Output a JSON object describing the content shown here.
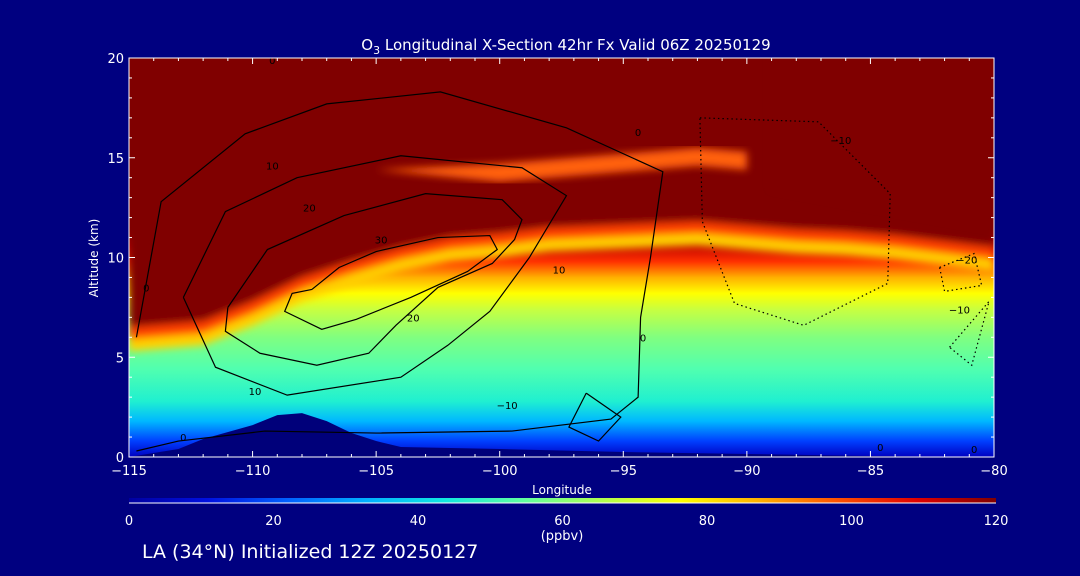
{
  "figure": {
    "title_prefix": "O",
    "title_subscript": "3",
    "title_rest": " Longitudinal X-Section 42hr  Fx Valid 06Z 20250129",
    "footer": "LA (34°N) Initialized 12Z 20250127"
  },
  "colors": {
    "background": "#000080",
    "terrain": "#00007a",
    "colormap": [
      "#0000a0",
      "#0010e0",
      "#0060ff",
      "#00b0ff",
      "#10e8e0",
      "#60ffa0",
      "#b0ff50",
      "#ffff00",
      "#ffb000",
      "#ff5000",
      "#e00000",
      "#800000"
    ]
  },
  "chart_data": {
    "type": "heatmap",
    "title": "O3 Longitudinal X-Section 42hr  Fx Valid 06Z 20250129",
    "xlabel": "Longitude",
    "ylabel": "Altitude (km)",
    "xlim": [
      -115,
      -80
    ],
    "ylim": [
      0,
      20
    ],
    "xticks": [
      -115,
      -110,
      -105,
      -100,
      -95,
      -90,
      -85,
      -80
    ],
    "xtick_labels": [
      "−115",
      "−110",
      "−105",
      "−100",
      "−95",
      "−90",
      "−85",
      "−80"
    ],
    "yticks": [
      0,
      5,
      10,
      15,
      20
    ],
    "ytick_labels": [
      "0",
      "5",
      "10",
      "15",
      "20"
    ],
    "colorbar": {
      "label": "(ppbv)",
      "min": 0,
      "max": 120,
      "ticks": [
        0,
        20,
        40,
        60,
        80,
        100,
        120
      ],
      "tick_labels": [
        "0",
        "20",
        "40",
        "60",
        "80",
        "100",
        "120"
      ]
    },
    "field_profile": {
      "longitudes": [
        -115,
        -112,
        -110,
        -108,
        -106,
        -104,
        -102,
        -100,
        -98,
        -96,
        -94,
        -92,
        -90,
        -88,
        -86,
        -84,
        -82,
        -80
      ],
      "stratosphere_base_km": [
        6.5,
        6.8,
        7.8,
        9.0,
        9.8,
        10.5,
        11.0,
        11.2,
        11.5,
        11.6,
        11.7,
        11.8,
        11.6,
        11.4,
        11.3,
        11.1,
        10.8,
        10.5
      ],
      "upper_laminae_km": [
        null,
        null,
        null,
        null,
        null,
        null,
        null,
        14.4,
        14.6,
        14.8,
        15.0,
        15.2,
        15.0,
        null,
        null,
        null,
        null,
        null
      ]
    },
    "terrain": {
      "longitudes": [
        -115,
        -113,
        -112,
        -110,
        -109,
        -108,
        -107,
        -106,
        -105,
        -104,
        -100,
        -95,
        -90,
        -85,
        -80
      ],
      "altitude_km": [
        0,
        0.4,
        0.9,
        1.6,
        2.1,
        2.2,
        1.8,
        1.2,
        0.8,
        0.5,
        0.4,
        0.25,
        0.15,
        0.05,
        0
      ]
    },
    "contours": {
      "style": "solid for >= 0, dotted for < 0",
      "lines": [
        {
          "level": 30,
          "points": [
            [
              -107.6,
              8.4
            ],
            [
              -106.5,
              9.5
            ],
            [
              -105.0,
              10.3
            ],
            [
              -102.5,
              11.0
            ],
            [
              -100.4,
              11.1
            ],
            [
              -100.1,
              10.4
            ],
            [
              -101.3,
              9.3
            ],
            [
              -103.6,
              8.0
            ],
            [
              -105.8,
              6.9
            ],
            [
              -107.2,
              6.4
            ],
            [
              -108.7,
              7.3
            ],
            [
              -108.4,
              8.2
            ],
            [
              -107.6,
              8.4
            ]
          ]
        },
        {
          "level": 20,
          "points": [
            [
              -111.0,
              7.5
            ],
            [
              -109.4,
              10.4
            ],
            [
              -106.3,
              12.1
            ],
            [
              -103.0,
              13.2
            ],
            [
              -99.9,
              12.9
            ],
            [
              -99.1,
              11.9
            ],
            [
              -99.4,
              10.9
            ],
            [
              -100.3,
              9.7
            ],
            [
              -102.5,
              8.5
            ],
            [
              -104.2,
              6.6
            ],
            [
              -105.3,
              5.2
            ],
            [
              -107.4,
              4.6
            ],
            [
              -109.7,
              5.2
            ],
            [
              -111.1,
              6.3
            ],
            [
              -111.0,
              7.5
            ]
          ]
        },
        {
          "level": 10,
          "points": [
            [
              -112.8,
              8.0
            ],
            [
              -111.1,
              12.3
            ],
            [
              -108.2,
              14.0
            ],
            [
              -104.0,
              15.1
            ],
            [
              -99.1,
              14.5
            ],
            [
              -97.3,
              13.1
            ],
            [
              -98.8,
              10.0
            ],
            [
              -100.4,
              7.3
            ],
            [
              -102.1,
              5.6
            ],
            [
              -104.0,
              4.0
            ],
            [
              -108.6,
              3.1
            ],
            [
              -111.5,
              4.5
            ],
            [
              -112.8,
              8.0
            ]
          ]
        },
        {
          "level": 0,
          "points": [
            [
              -114.7,
              6.0
            ],
            [
              -113.7,
              12.8
            ],
            [
              -110.3,
              16.2
            ],
            [
              -107.0,
              17.7
            ],
            [
              -102.4,
              18.3
            ],
            [
              -97.3,
              16.5
            ],
            [
              -93.4,
              14.3
            ],
            [
              -93.9,
              10.0
            ],
            [
              -94.3,
              7.0
            ],
            [
              -94.4,
              3.0
            ],
            [
              -95.5,
              1.9
            ],
            [
              -99.5,
              1.3
            ],
            [
              -105.0,
              1.2
            ],
            [
              -109.5,
              1.3
            ],
            [
              -113.0,
              0.8
            ],
            [
              -114.7,
              0.3
            ]
          ]
        },
        {
          "level": -10,
          "points": [
            [
              -91.9,
              17.0
            ],
            [
              -87.1,
              16.8
            ],
            [
              -84.2,
              13.2
            ],
            [
              -84.3,
              8.7
            ],
            [
              -87.7,
              6.6
            ],
            [
              -90.5,
              7.7
            ],
            [
              -91.8,
              11.8
            ],
            [
              -91.9,
              17.0
            ]
          ]
        },
        {
          "level": -20,
          "points": [
            [
              -82.2,
              9.5
            ],
            [
              -80.8,
              10.2
            ],
            [
              -80.5,
              8.6
            ],
            [
              -82.0,
              8.3
            ],
            [
              -82.2,
              9.5
            ]
          ]
        },
        {
          "level": -10,
          "points": [
            [
              -81.8,
              5.5
            ],
            [
              -80.2,
              7.8
            ],
            [
              -80.9,
              4.6
            ],
            [
              -81.8,
              5.5
            ]
          ]
        },
        {
          "level": 0,
          "points": [
            [
              -96.5,
              3.2
            ],
            [
              -97.2,
              1.5
            ],
            [
              -96.0,
              0.8
            ],
            [
              -95.1,
              2.0
            ],
            [
              -96.5,
              3.2
            ]
          ]
        }
      ],
      "labels": [
        {
          "text": "0",
          "lon": -109.2,
          "lat_km": 19.7
        },
        {
          "text": "0",
          "lon": -94.4,
          "lat_km": 16.1
        },
        {
          "text": "−10",
          "lon": -86.2,
          "lat_km": 15.7
        },
        {
          "text": "10",
          "lon": -109.2,
          "lat_km": 14.4
        },
        {
          "text": "20",
          "lon": -107.7,
          "lat_km": 12.3
        },
        {
          "text": "30",
          "lon": -104.8,
          "lat_km": 10.7
        },
        {
          "text": "10",
          "lon": -97.6,
          "lat_km": 9.2
        },
        {
          "text": "20",
          "lon": -103.5,
          "lat_km": 6.8
        },
        {
          "text": "0",
          "lon": -94.2,
          "lat_km": 5.8
        },
        {
          "text": "−20",
          "lon": -81.1,
          "lat_km": 9.7
        },
        {
          "text": "−10",
          "lon": -81.4,
          "lat_km": 7.2
        },
        {
          "text": "0",
          "lon": -114.3,
          "lat_km": 8.3
        },
        {
          "text": "10",
          "lon": -109.9,
          "lat_km": 3.1
        },
        {
          "text": "−10",
          "lon": -99.7,
          "lat_km": 2.4
        },
        {
          "text": "0",
          "lon": -112.8,
          "lat_km": 0.8
        },
        {
          "text": "0",
          "lon": -84.6,
          "lat_km": 0.3
        },
        {
          "text": "0",
          "lon": -80.8,
          "lat_km": 0.2
        }
      ]
    }
  }
}
